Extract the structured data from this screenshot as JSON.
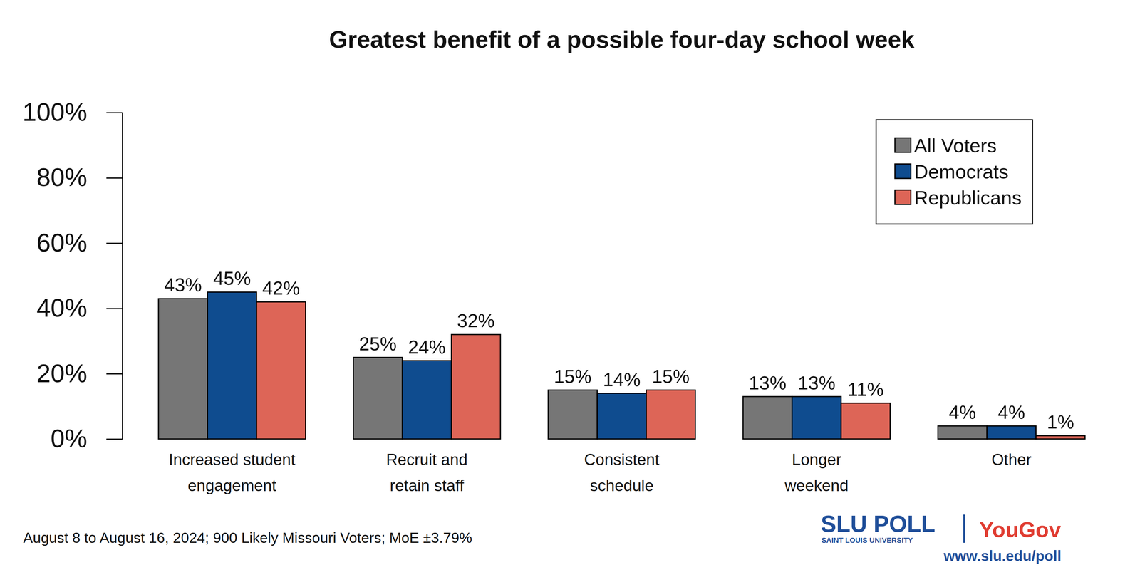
{
  "chart_data": {
    "type": "bar",
    "title": "Greatest benefit of a possible four-day school week",
    "categories": [
      "Increased student engagement",
      "Recruit and retain staff",
      "Consistent schedule",
      "Longer weekend",
      "Other"
    ],
    "series": [
      {
        "name": "All Voters",
        "color": "#767676",
        "values": [
          43,
          25,
          15,
          13,
          4
        ],
        "value_labels": [
          "43%",
          "25%",
          "15%",
          "13%",
          "4%"
        ]
      },
      {
        "name": "Democrats",
        "color": "#0f4c8f",
        "values": [
          45,
          24,
          14,
          13,
          4
        ],
        "value_labels": [
          "45%",
          "24%",
          "14%",
          "13%",
          "4%"
        ]
      },
      {
        "name": "Republicans",
        "color": "#dd6557",
        "values": [
          42,
          32,
          15,
          11,
          1
        ],
        "value_labels": [
          "42%",
          "32%",
          "15%",
          "11%",
          "1%"
        ]
      }
    ],
    "ylim": [
      0,
      100
    ],
    "yticks": [
      {
        "value": 0,
        "label": "0%"
      },
      {
        "value": 20,
        "label": "20%"
      },
      {
        "value": 40,
        "label": "40%"
      },
      {
        "value": 60,
        "label": "60%"
      },
      {
        "value": 80,
        "label": "80%"
      },
      {
        "value": 100,
        "label": "100%"
      }
    ],
    "grid": false,
    "legend": "top-right",
    "data_labels": true,
    "annotations": [
      "August 8 to August 16, 2024; 900 Likely Missouri Voters; MoE ±3.79%",
      "SLU POLL",
      "SAINT LOUIS UNIVERSITY",
      "YouGov",
      "www.slu.edu/poll"
    ]
  }
}
